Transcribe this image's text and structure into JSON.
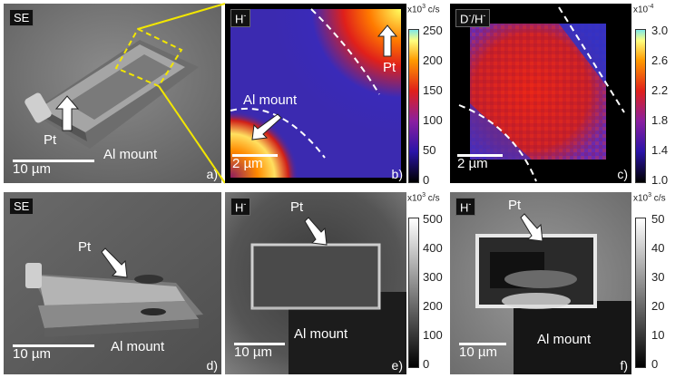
{
  "panels": {
    "a": {
      "tag": "SE",
      "letter": "a)",
      "pt": "Pt",
      "mount": "Al mount",
      "scale": "10 µm"
    },
    "b": {
      "tag": "H",
      "tag_sup": "-",
      "letter": "b)",
      "pt": "Pt",
      "mount": "Al mount",
      "scale": "2 µm"
    },
    "c": {
      "tag": "D",
      "tag_sup": "-",
      "tag_tail": "/H",
      "tag_sup2": "-",
      "letter": "c)",
      "scale": "2 µm"
    },
    "d": {
      "tag": "SE",
      "letter": "d)",
      "pt": "Pt",
      "mount": "Al mount",
      "scale": "10 µm"
    },
    "e": {
      "tag": "H",
      "tag_sup": "-",
      "letter": "e)",
      "pt": "Pt",
      "mount": "Al mount",
      "scale": "10 µm"
    },
    "f": {
      "tag": "H",
      "tag_sup": "-",
      "letter": "f)",
      "pt": "Pt",
      "mount": "Al mount",
      "scale": "10 µm"
    }
  },
  "colorbars": {
    "b": {
      "unit_base": "x10",
      "unit_exp": "3",
      "unit_tail": " c/s",
      "ticks": [
        "250",
        "200",
        "150",
        "100",
        "50",
        "0"
      ]
    },
    "c": {
      "unit_base": "x10",
      "unit_exp": "-4",
      "ticks": [
        "3.0",
        "2.6",
        "2.2",
        "1.8",
        "1.4",
        "1.0"
      ]
    },
    "e": {
      "unit_base": "x10",
      "unit_exp": "3",
      "unit_tail": " c/s",
      "ticks": [
        "500",
        "400",
        "300",
        "200",
        "100",
        "0"
      ]
    },
    "f": {
      "unit_base": "x10",
      "unit_exp": "3",
      "unit_tail": " c/s",
      "ticks": [
        "50",
        "40",
        "30",
        "20",
        "10",
        "0"
      ]
    }
  },
  "colors": {
    "zoom_line": "#f2e600",
    "dashed_boundary": "#ffffff"
  }
}
